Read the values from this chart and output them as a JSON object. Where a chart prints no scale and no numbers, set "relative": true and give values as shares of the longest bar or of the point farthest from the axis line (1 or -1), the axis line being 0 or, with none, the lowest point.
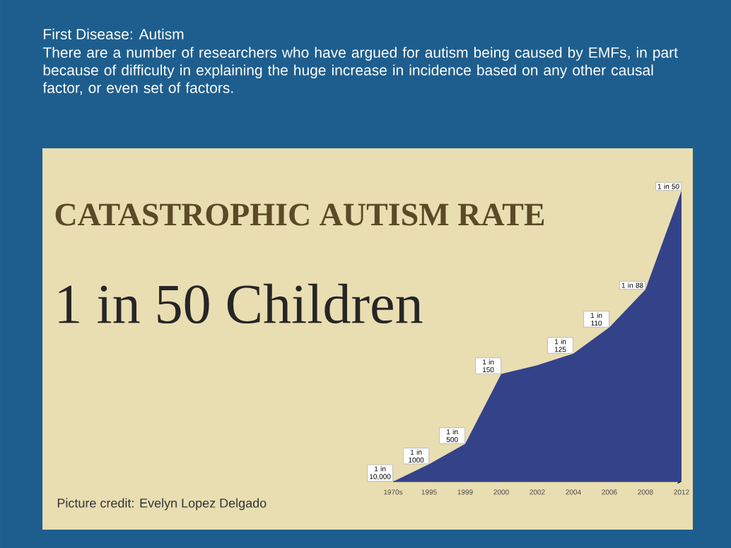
{
  "chart_data": {
    "type": "area",
    "title": "CATASTROPHIC AUTISM RATE",
    "subtitle": "1 in 50 Children",
    "categories": [
      "1970s",
      "1995",
      "1999",
      "2000",
      "2002",
      "2004",
      "2006",
      "2008",
      "2012"
    ],
    "values": [
      0,
      0.06,
      0.13,
      0.37,
      0.4,
      0.44,
      0.53,
      0.66,
      1
    ],
    "relative": true,
    "color": "#34428a",
    "annotations": [
      "First Disease:  Autism",
      "There are a number of researchers who have argued for autism being caused by EMFs, in part because of difficulty in explaining the huge increase in incidence based on any other causal factor, or even set of factors.",
      "Picture credit: Evelyn Lopez Delgado",
      {
        "text": "1 in 10,000",
        "x": "1970s",
        "y": 0
      },
      {
        "text": "1 in 1000",
        "x": "1995",
        "y": 0.06
      },
      {
        "text": "1 in 500",
        "x": "1999",
        "y": 0.13
      },
      {
        "text": "1 in 150",
        "x": "2000",
        "y": 0.37
      },
      {
        "text": "1 in 125",
        "x": "2004",
        "y": 0.44
      },
      {
        "text": "1 in 110",
        "x": "2006",
        "y": 0.53
      },
      {
        "text": "1 in 88",
        "x": "2008",
        "y": 0.66
      },
      {
        "text": "1 in 50",
        "x": "2012",
        "y": 1
      }
    ]
  }
}
